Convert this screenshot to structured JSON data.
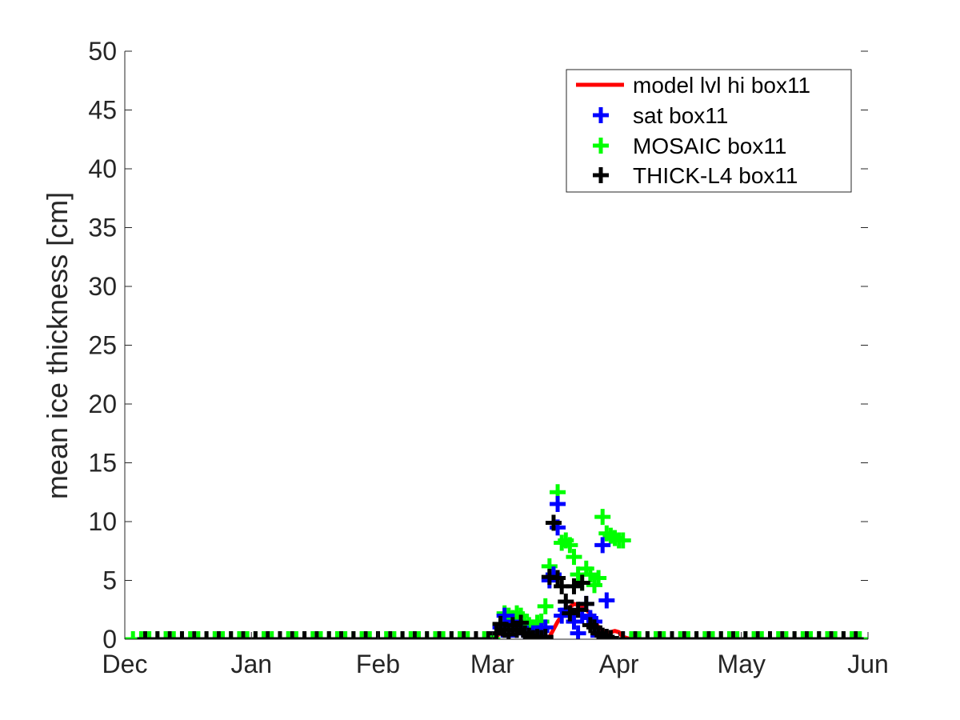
{
  "chart_data": {
    "type": "line",
    "title": "",
    "xlabel": "",
    "ylabel": "mean ice thickness [cm]",
    "x_tick_labels": [
      "Dec",
      "Jan",
      "Feb",
      "Mar",
      "Apr",
      "May",
      "Jun"
    ],
    "y_ticks": [
      0,
      5,
      10,
      15,
      20,
      25,
      30,
      35,
      40,
      45,
      50
    ],
    "xlim": [
      "Dec 1",
      "Jun 1"
    ],
    "ylim": [
      0,
      50
    ],
    "grid": false,
    "legend_position": "top-right",
    "series": [
      {
        "name": "model lvl hi box11",
        "kind": "line",
        "color": "#ff0000",
        "x": [
          "Dec 1",
          "Mar 1",
          "Mar 3",
          "Mar 5",
          "Mar 7",
          "Mar 9",
          "Mar 11",
          "Mar 13",
          "Mar 15",
          "Mar 17",
          "Mar 19",
          "Mar 21",
          "Mar 23",
          "Mar 25",
          "Mar 27",
          "Mar 29",
          "Mar 31",
          "Apr 1",
          "Apr 2",
          "Apr 4",
          "Jun 1"
        ],
        "y": [
          0,
          0,
          0.5,
          1.5,
          1.0,
          0.3,
          0.1,
          0,
          0.2,
          1.5,
          2.5,
          3.0,
          2.8,
          2.2,
          1.0,
          0.5,
          0.7,
          0.6,
          0.2,
          0,
          0
        ]
      },
      {
        "name": "sat box11",
        "kind": "marker",
        "color": "#0000ff",
        "x": [
          "Mar 2",
          "Mar 3",
          "Mar 4",
          "Mar 5",
          "Mar 6",
          "Mar 7",
          "Mar 8",
          "Mar 9",
          "Mar 10",
          "Mar 11",
          "Mar 12",
          "Mar 13",
          "Mar 14",
          "Mar 15",
          "Mar 16",
          "Mar 17",
          "Mar 17",
          "Mar 18",
          "Mar 19",
          "Mar 20",
          "Mar 21",
          "Mar 22",
          "Mar 23",
          "Mar 24",
          "Mar 25",
          "Mar 26",
          "Mar 27",
          "Mar 28",
          "Mar 29"
        ],
        "y": [
          0.5,
          1.0,
          2.0,
          0.3,
          1.5,
          0.8,
          1.0,
          0.5,
          0.3,
          0.5,
          0.5,
          0.7,
          1.0,
          5.0,
          5.5,
          11.5,
          9.5,
          2.0,
          2.5,
          2.0,
          1.5,
          0.5,
          2.0,
          3.0,
          1.8,
          1.5,
          0.3,
          8.0,
          3.3
        ]
      },
      {
        "name": "MOSAIC box11",
        "kind": "marker",
        "color": "#00ff00",
        "x": [
          "Dec 3",
          "Dec 5",
          "Dec 7",
          "Dec 9",
          "Dec 11",
          "Dec 13",
          "Dec 15",
          "Dec 17",
          "Dec 19",
          "Dec 21",
          "Dec 23",
          "Dec 25",
          "Dec 27",
          "Dec 29",
          "Dec 31",
          "Jan 2",
          "Jan 4",
          "Jan 6",
          "Jan 8",
          "Jan 10",
          "Jan 12",
          "Jan 14",
          "Jan 16",
          "Jan 18",
          "Jan 20",
          "Jan 22",
          "Jan 24",
          "Jan 26",
          "Jan 28",
          "Jan 30",
          "Feb 1",
          "Feb 3",
          "Feb 5",
          "Feb 7",
          "Feb 9",
          "Feb 11",
          "Feb 13",
          "Feb 15",
          "Feb 17",
          "Feb 19",
          "Feb 21",
          "Feb 23",
          "Feb 25",
          "Feb 27",
          "Mar 1",
          "Mar 2",
          "Mar 3",
          "Mar 4",
          "Mar 5",
          "Mar 6",
          "Mar 7",
          "Mar 8",
          "Mar 9",
          "Mar 10",
          "Mar 11",
          "Mar 12",
          "Mar 13",
          "Mar 14",
          "Mar 15",
          "Mar 16",
          "Mar 17",
          "Mar 18",
          "Mar 19",
          "Mar 20",
          "Mar 21",
          "Mar 22",
          "Mar 23",
          "Mar 24",
          "Mar 25",
          "Mar 26",
          "Mar 27",
          "Mar 28",
          "Mar 29",
          "Mar 30",
          "Mar 31",
          "Apr 1",
          "Apr 2",
          "Apr 4",
          "Apr 6",
          "Apr 8",
          "Apr 10",
          "Apr 12",
          "Apr 14",
          "Apr 16",
          "Apr 18",
          "Apr 20",
          "Apr 22",
          "Apr 24",
          "Apr 26",
          "Apr 28",
          "Apr 30",
          "May 2",
          "May 4",
          "May 6",
          "May 8",
          "May 10",
          "May 12",
          "May 14",
          "May 16",
          "May 18",
          "May 20",
          "May 22",
          "May 24",
          "May 26",
          "May 28",
          "May 30"
        ],
        "y": [
          0,
          0,
          0,
          0,
          0,
          0,
          0,
          0,
          0,
          0,
          0,
          0,
          0,
          0,
          0,
          0,
          0,
          0,
          0,
          0,
          0,
          0,
          0,
          0,
          0,
          0,
          0,
          0,
          0,
          0,
          0,
          0,
          0,
          0,
          0,
          0,
          0,
          0,
          0,
          0,
          0,
          0,
          0,
          0,
          0,
          0.5,
          1.2,
          2.2,
          2.0,
          1.8,
          2.2,
          2.0,
          1.5,
          1.2,
          1.0,
          1.4,
          1.5,
          2.8,
          6.2,
          5.5,
          12.5,
          8.2,
          8.4,
          8.0,
          7.0,
          5.5,
          4.8,
          6.0,
          5.5,
          4.6,
          5.2,
          10.4,
          9.0,
          8.8,
          8.6,
          8.4,
          8.4,
          0,
          0,
          0,
          0,
          0,
          0,
          0,
          0,
          0,
          0,
          0,
          0,
          0,
          0,
          0,
          0,
          0,
          0,
          0,
          0,
          0,
          0,
          0,
          0,
          0,
          0,
          0,
          0,
          0
        ]
      },
      {
        "name": "THICK-L4 box11",
        "kind": "marker",
        "color": "#000000",
        "x": [
          "Dec 6",
          "Dec 9",
          "Dec 12",
          "Dec 15",
          "Dec 18",
          "Dec 21",
          "Dec 24",
          "Dec 27",
          "Dec 30",
          "Jan 2",
          "Jan 5",
          "Jan 8",
          "Jan 11",
          "Jan 14",
          "Jan 17",
          "Jan 20",
          "Jan 23",
          "Jan 26",
          "Jan 29",
          "Feb 1",
          "Feb 4",
          "Feb 7",
          "Feb 10",
          "Feb 13",
          "Feb 16",
          "Feb 19",
          "Feb 22",
          "Feb 25",
          "Feb 28",
          "Mar 2",
          "Mar 3",
          "Mar 4",
          "Mar 5",
          "Mar 6",
          "Mar 7",
          "Mar 8",
          "Mar 9",
          "Mar 10",
          "Mar 11",
          "Mar 12",
          "Mar 13",
          "Mar 14",
          "Mar 15",
          "Mar 16",
          "Mar 17",
          "Mar 18",
          "Mar 19",
          "Mar 20",
          "Mar 21",
          "Mar 22",
          "Mar 23",
          "Mar 24",
          "Mar 25",
          "Mar 26",
          "Mar 27",
          "Mar 28",
          "Mar 29",
          "Mar 30",
          "Apr 2",
          "Apr 5",
          "Apr 8",
          "Apr 11",
          "Apr 14",
          "Apr 17",
          "Apr 20",
          "Apr 23",
          "Apr 26",
          "Apr 29",
          "May 2",
          "May 5",
          "May 8",
          "May 11",
          "May 14",
          "May 17",
          "May 20",
          "May 23",
          "May 26",
          "May 29"
        ],
        "y": [
          0,
          0,
          0,
          0,
          0,
          0,
          0,
          0,
          0,
          0,
          0,
          0,
          0,
          0,
          0,
          0,
          0,
          0,
          0,
          0,
          0,
          0,
          0,
          0,
          0,
          0,
          0,
          0,
          0,
          0.5,
          1.3,
          0.8,
          0.4,
          1.2,
          0.8,
          1.4,
          0.5,
          0.3,
          0.1,
          0.2,
          0.1,
          0.2,
          5.3,
          9.9,
          5.2,
          4.5,
          3.2,
          2.2,
          4.5,
          2.5,
          4.8,
          3.0,
          1.2,
          1.0,
          0.5,
          0.3,
          0.2,
          0.1,
          0,
          0,
          0,
          0,
          0,
          0,
          0,
          0,
          0,
          0,
          0,
          0,
          0,
          0,
          0,
          0,
          0,
          0,
          0,
          0
        ]
      }
    ]
  }
}
